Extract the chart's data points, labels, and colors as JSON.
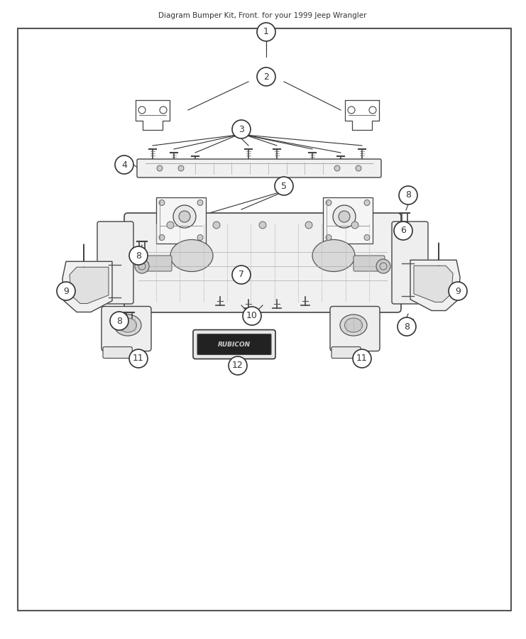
{
  "title": "Diagram Bumper Kit, Front. for your 1999 Jeep Wrangler",
  "bg_color": "#ffffff",
  "border_color": "#333333",
  "callout_color": "#333333",
  "part_numbers": [
    1,
    2,
    3,
    4,
    5,
    6,
    7,
    8,
    9,
    10,
    11,
    12
  ],
  "fig_width": 7.41,
  "fig_height": 9.0,
  "dpi": 100
}
